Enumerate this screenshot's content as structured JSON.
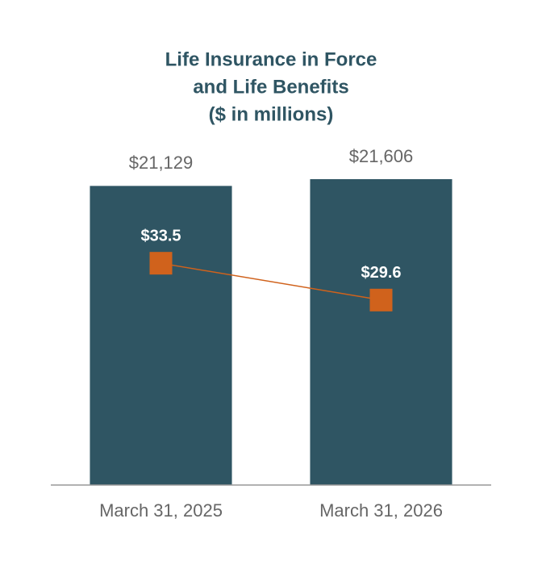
{
  "chart_data": {
    "type": "bar_line",
    "title": [
      "Life Insurance in Force",
      "and Life Benefits",
      "($ in millions)"
    ],
    "categories": [
      "March 31, 2025",
      "March 31, 2026"
    ],
    "series": [
      {
        "type": "bar",
        "color": "#2f5563",
        "values": [
          21129,
          21606
        ],
        "value_labels": [
          "$21,129",
          "$21,606"
        ]
      },
      {
        "type": "line",
        "axis": "y2",
        "color": "#d0621c",
        "values": [
          33.5,
          29.6
        ],
        "value_labels": [
          "$33.5",
          "$29.6"
        ]
      }
    ],
    "ylim": [
      0,
      24000
    ],
    "y2lim": [
      10,
      46
    ]
  }
}
